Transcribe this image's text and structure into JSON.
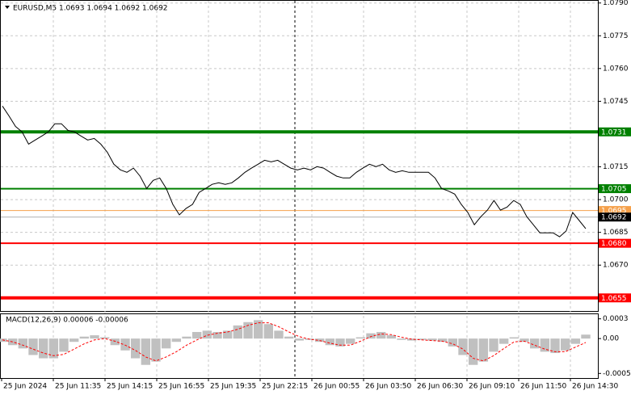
{
  "chart_data": [
    {
      "type": "line",
      "title": "EURUSD,M5  1.0693 1.0694 1.0692 1.0692",
      "x_labels": [
        "25 Jun 2024",
        "25 Jun 11:35",
        "25 Jun 14:15",
        "25 Jun 16:55",
        "25 Jun 19:35",
        "25 Jun 22:15",
        "26 Jun 00:55",
        "26 Jun 03:50",
        "26 Jun 06:30",
        "26 Jun 09:10",
        "26 Jun 11:50",
        "26 Jun 14:30"
      ],
      "ylim": [
        1.0649,
        1.0791
      ],
      "yticks": [
        {
          "value": 1.079,
          "label": "1.0790"
        },
        1.0775,
        {
          "value": 1.076,
          "label": "1.0760"
        },
        1.0745,
        1.0715,
        {
          "value": 1.07,
          "label": "1.0700"
        },
        1.0685,
        {
          "value": 1.067,
          "label": "1.0670"
        }
      ],
      "levels": [
        {
          "value": 1.0731,
          "color": "#008000",
          "width": 4
        },
        {
          "value": 1.0705,
          "color": "#008000",
          "width": 2
        },
        {
          "value": 1.0695,
          "color": "#f5a04a",
          "width": 1
        },
        {
          "value": 1.0692,
          "label": "1.0692",
          "color": "#000000",
          "width": 1
        },
        {
          "value": 1.068,
          "label": "1.0680",
          "color": "#ff0000",
          "width": 2
        },
        {
          "value": 1.0655,
          "color": "#ff0000",
          "width": 4
        }
      ],
      "series": [
        {
          "color": "#000000",
          "values": [
            1.07428,
            1.07383,
            1.07335,
            1.0731,
            1.07254,
            1.07273,
            1.07291,
            1.0731,
            1.07347,
            1.07347,
            1.07317,
            1.0731,
            1.07291,
            1.07273,
            1.0728,
            1.07254,
            1.07217,
            1.07162,
            1.07136,
            1.07125,
            1.07144,
            1.07107,
            1.07051,
            1.07088,
            1.07099,
            1.07051,
            1.06978,
            1.0693,
            1.06959,
            1.06978,
            1.07033,
            1.07051,
            1.0707,
            1.07077,
            1.0707,
            1.07077,
            1.07099,
            1.07125,
            1.07144,
            1.07162,
            1.0718,
            1.07173,
            1.0718,
            1.07162,
            1.07144,
            1.07136,
            1.07144,
            1.07136,
            1.07151,
            1.07144,
            1.07125,
            1.07107,
            1.07099,
            1.07099,
            1.07125,
            1.07144,
            1.07162,
            1.07151,
            1.07162,
            1.07136,
            1.07125,
            1.07132,
            1.07125,
            1.07125,
            1.07125,
            1.07125,
            1.07099,
            1.07051,
            1.0704,
            1.07025,
            1.06978,
            1.06941,
            1.06885,
            1.06922,
            1.06952,
            1.06996,
            1.06952,
            1.06966,
            1.06996,
            1.06978,
            1.06922,
            1.06885,
            1.06848,
            1.06848,
            1.06848,
            1.0683,
            1.06856,
            1.06941,
            1.06904,
            1.06867
          ]
        }
      ]
    },
    {
      "type": "macd",
      "title": "MACD(12,26,9) 0.00006 -0.00006",
      "ylim": [
        -0.0006,
        0.00037
      ],
      "yticks": [
        0.0003,
        {
          "value": 0,
          "label": "0.00"
        },
        -0.00053
      ],
      "series": [
        {
          "color": "#c0c0c0",
          "values": [
            -5e-05,
            -0.0001,
            -0.00015,
            -0.00025,
            -0.0003,
            -0.0003,
            -0.0002,
            -5e-05,
            3e-05,
            5e-05,
            2e-05,
            -0.0001,
            -0.00018,
            -0.0003,
            -0.0004,
            -0.00035,
            -0.00015,
            -5e-05,
            3e-05,
            0.0001,
            0.00012,
            0.0001,
            0.00012,
            0.0002,
            0.00025,
            0.00028,
            0.00022,
            0.00012,
            3e-05,
            -3e-05,
            -2e-05,
            -5e-05,
            -0.0001,
            -0.00012,
            -8e-05,
            2e-05,
            8e-05,
            0.0001,
            5e-05,
            -2e-05,
            -3e-05,
            -2e-05,
            -3e-05,
            -5e-05,
            -0.00012,
            -0.00025,
            -0.0004,
            -0.00035,
            -0.0002,
            -8e-05,
            2e-05,
            -5e-05,
            -0.00015,
            -0.0002,
            -0.00022,
            -0.00018,
            -8e-05,
            6e-05
          ]
        },
        {
          "color": "#ff0000",
          "values": [
            -2e-05,
            -5e-05,
            -0.0001,
            -0.00016,
            -0.00022,
            -0.00026,
            -0.00024,
            -0.00016,
            -8e-05,
            -2e-05,
            0,
            -4e-05,
            -0.0001,
            -0.00018,
            -0.00028,
            -0.00034,
            -0.00028,
            -0.0002,
            -0.0001,
            -2e-05,
            5e-05,
            8e-05,
            0.0001,
            0.00014,
            0.0002,
            0.00024,
            0.00024,
            0.00018,
            0.0001,
            3e-05,
            -1e-05,
            -3e-05,
            -7e-05,
            -0.0001,
            -0.0001,
            -4e-05,
            3e-05,
            7e-05,
            6e-05,
            2e-05,
            -1e-05,
            -2e-05,
            -3e-05,
            -4e-05,
            -8e-05,
            -0.00016,
            -0.0003,
            -0.00034,
            -0.00026,
            -0.00015,
            -5e-05,
            -4e-05,
            -0.0001,
            -0.00016,
            -0.0002,
            -0.0002,
            -0.00013,
            -6e-05
          ]
        }
      ]
    }
  ]
}
